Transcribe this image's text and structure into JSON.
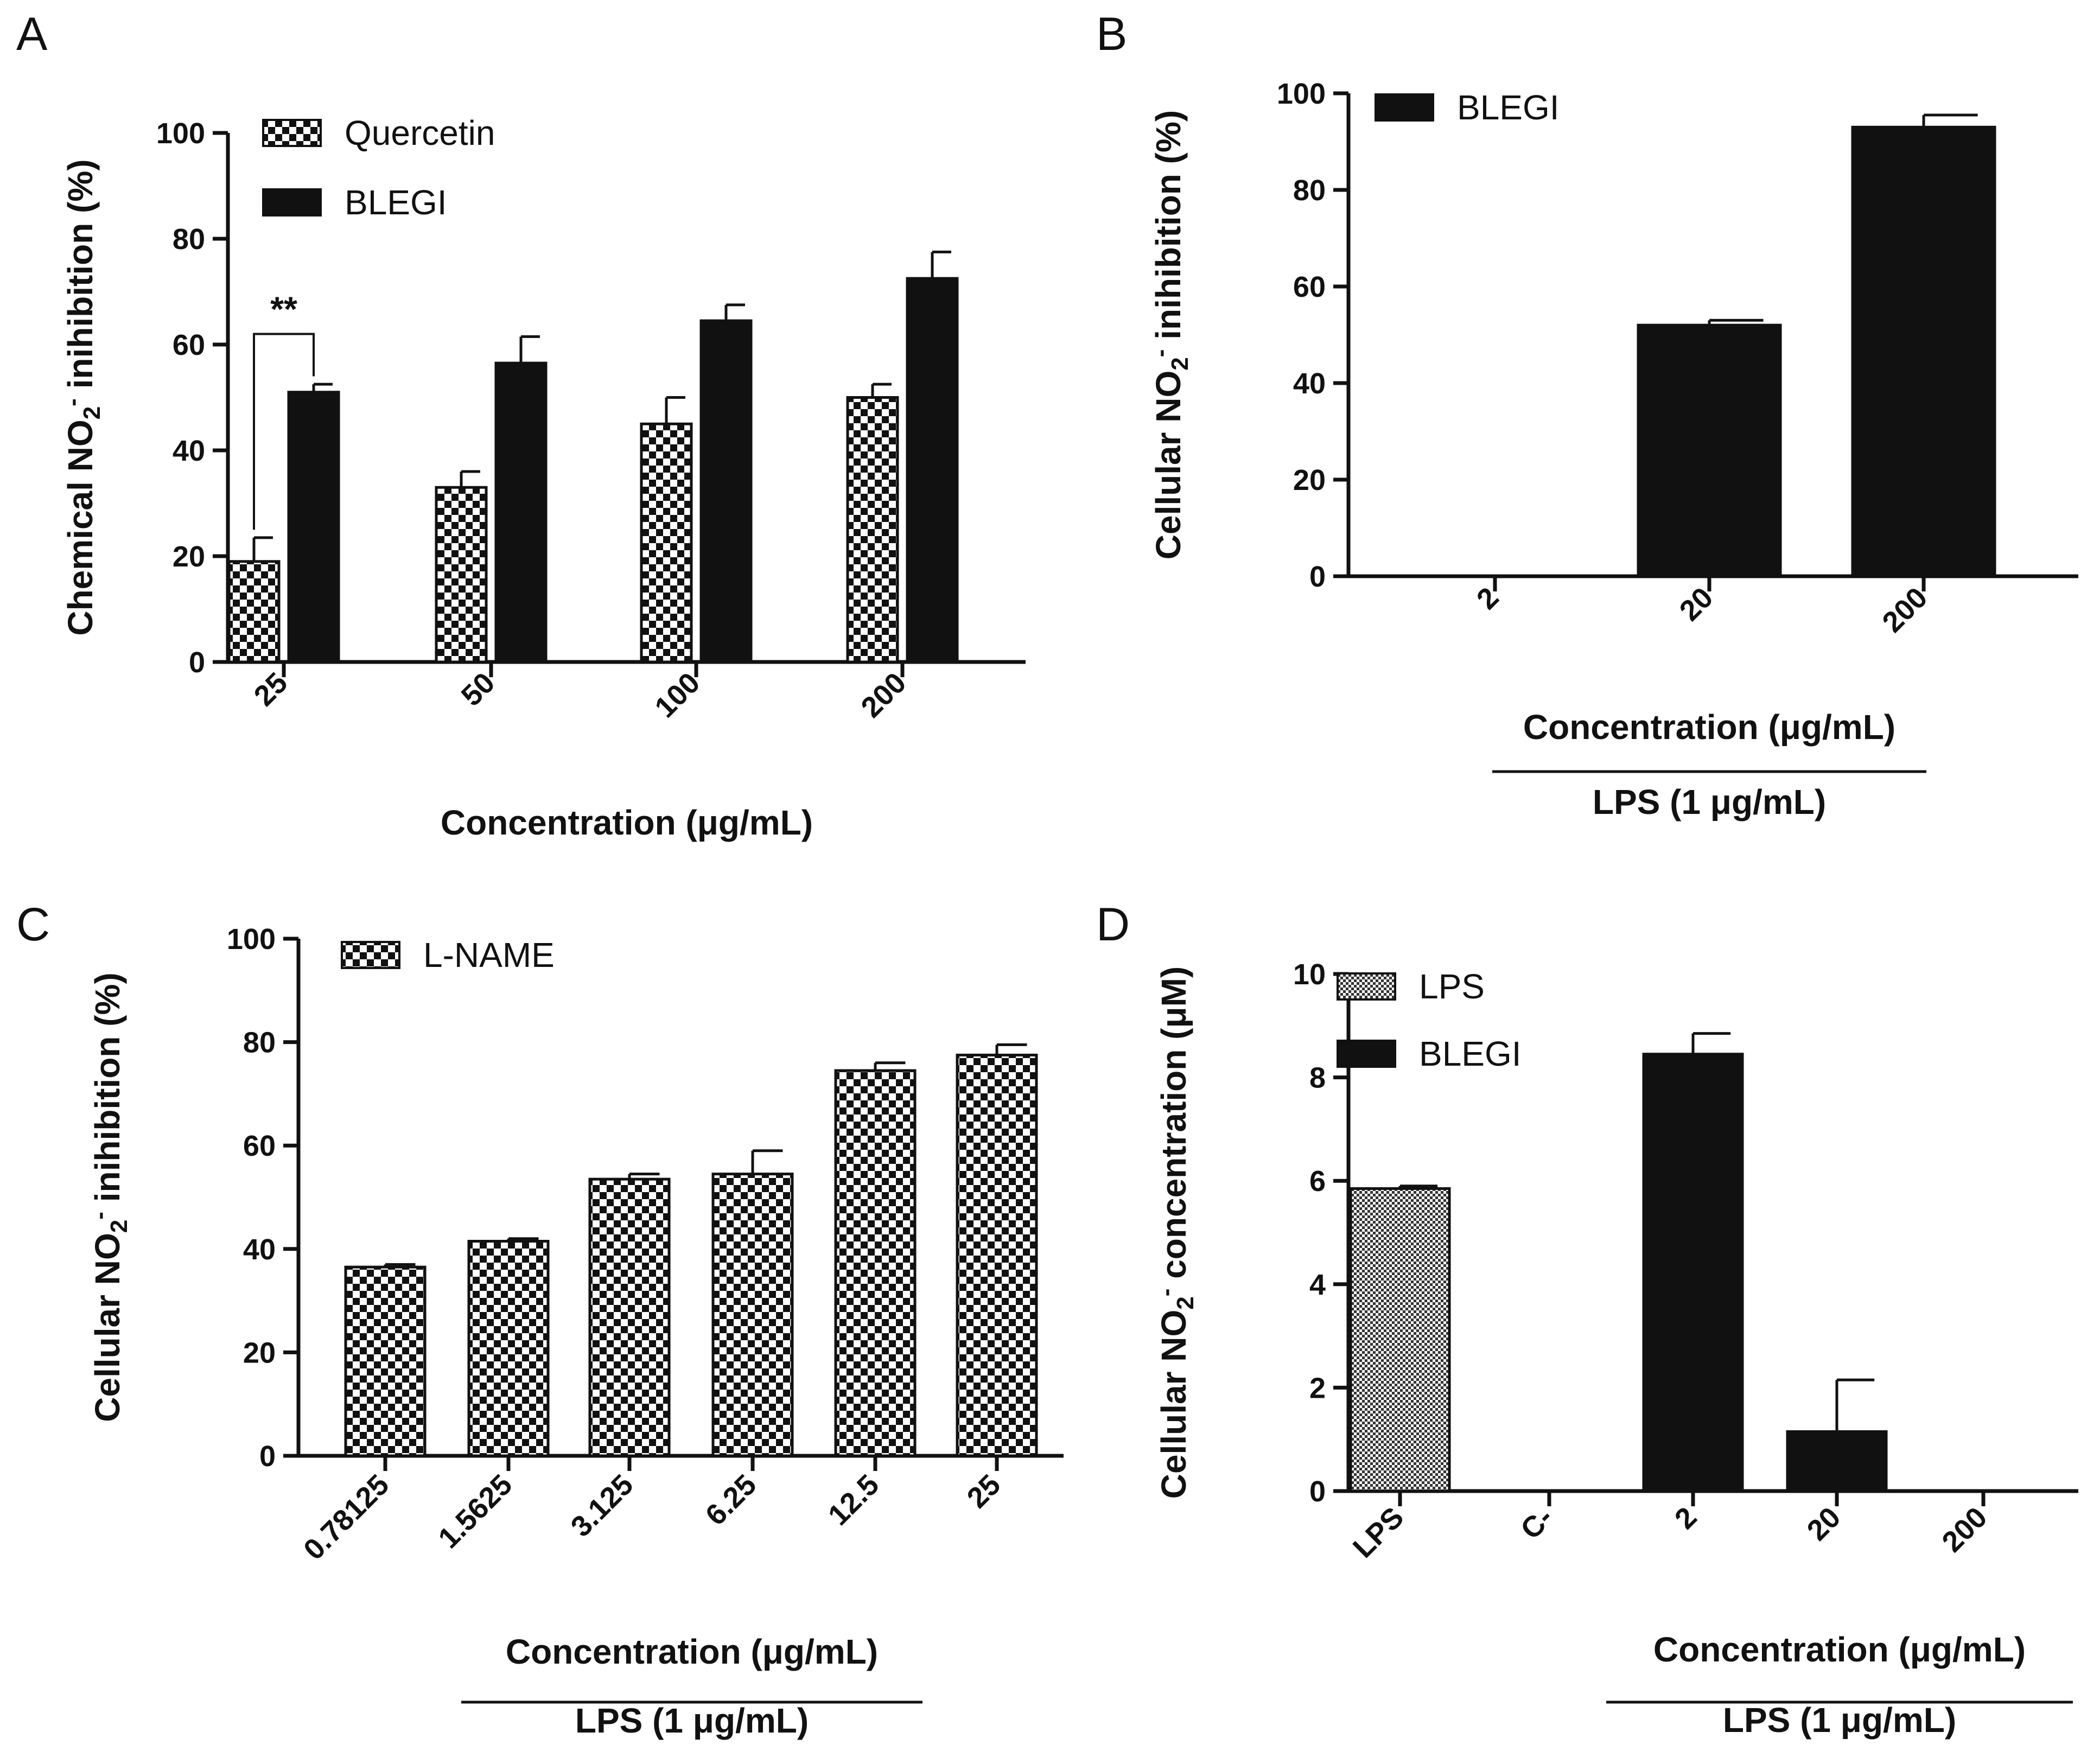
{
  "chart_data": [
    {
      "panel": "A",
      "type": "bar",
      "ylabel": "Chemical NO2- inihibition (%)",
      "xlabel": "Concentration (μg/mL)",
      "ylim": [
        0,
        100
      ],
      "yticks": [
        0,
        20,
        40,
        60,
        80,
        100
      ],
      "categories": [
        "25",
        "50",
        "100",
        "200"
      ],
      "series": [
        {
          "name": "Quercetin",
          "pattern": "checker",
          "values": [
            19,
            33,
            45,
            50
          ],
          "errors": [
            4.5,
            3,
            5,
            2.5
          ]
        },
        {
          "name": "BLEGI",
          "pattern": "solid",
          "values": [
            51,
            56.5,
            64.5,
            72.5
          ],
          "errors": [
            1.5,
            5,
            3,
            5
          ]
        }
      ],
      "annotation": {
        "text": "**",
        "between": [
          "Quercetin",
          "BLEGI"
        ],
        "category": "25"
      }
    },
    {
      "panel": "B",
      "type": "bar",
      "ylabel": "Cellular NO2- inihibition (%)",
      "xlabel": "Concentration (μg/mL)",
      "xlabel2": "LPS (1 μg/mL)",
      "ylim": [
        0,
        100
      ],
      "yticks": [
        0,
        20,
        40,
        60,
        80,
        100
      ],
      "categories": [
        "2",
        "20",
        "200"
      ],
      "series": [
        {
          "name": "BLEGI",
          "pattern": "solid",
          "values": [
            0,
            52,
            93
          ],
          "errors": [
            0,
            1,
            2.5
          ]
        }
      ]
    },
    {
      "panel": "C",
      "type": "bar",
      "ylabel": "Cellular NO2- inihibition (%)",
      "xlabel": "Concentration (μg/mL)",
      "xlabel2": "LPS (1 μg/mL)",
      "ylim": [
        0,
        100
      ],
      "yticks": [
        0,
        20,
        40,
        60,
        80,
        100
      ],
      "categories": [
        "0.78125",
        "1.5625",
        "3.125",
        "6.25",
        "12.5",
        "25"
      ],
      "series": [
        {
          "name": "L-NAME",
          "pattern": "checker",
          "values": [
            36.5,
            41.5,
            53.5,
            54.5,
            74.5,
            77.5
          ],
          "errors": [
            0.5,
            0.5,
            1,
            4.5,
            1.5,
            2
          ]
        }
      ]
    },
    {
      "panel": "D",
      "type": "bar",
      "ylabel": "Cellular NO2- concentration (μM)",
      "xlabel": "Concentration (μg/mL)",
      "xlabel2": "LPS (1 μg/mL)",
      "ylim": [
        0,
        10
      ],
      "yticks": [
        0,
        2,
        4,
        6,
        8,
        10
      ],
      "categories": [
        "LPS",
        "C-",
        "2",
        "20",
        "200"
      ],
      "series": [
        {
          "name": "LPS",
          "pattern": "fine",
          "values": [
            5.85,
            null,
            null,
            null,
            null
          ],
          "errors": [
            0.05,
            null,
            null,
            null,
            null
          ]
        },
        {
          "name": "BLEGI",
          "pattern": "solid",
          "values": [
            null,
            null,
            8.45,
            1.15,
            0
          ],
          "errors": [
            null,
            null,
            0.4,
            1.0,
            0
          ]
        }
      ]
    }
  ]
}
